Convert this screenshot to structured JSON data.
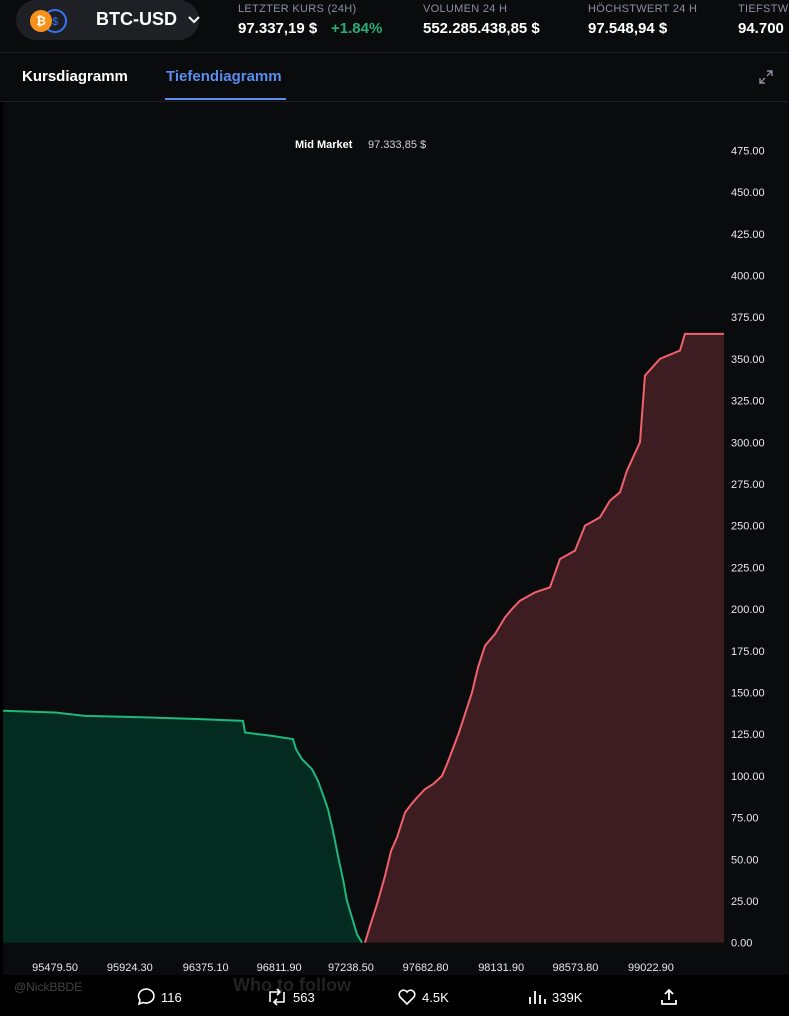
{
  "ui": {
    "symbol": "BTC-USD",
    "stats": [
      {
        "label": "LETZTER KURS (24H)",
        "value": "97.337,19 $",
        "change": "+1.84%"
      },
      {
        "label": "VOLUMEN 24 H",
        "value": "552.285.438,85 $"
      },
      {
        "label": "HÖCHSTWERT 24 H",
        "value": "97.548,94 $"
      },
      {
        "label": "TIEFSTW",
        "value": "94.700"
      }
    ],
    "tabs": [
      "Kursdiagramm",
      "Tiefendiagramm"
    ],
    "footer": {
      "handle": "@NickBBDE",
      "overlay": "Who to follow",
      "replies": "116",
      "reposts": "563",
      "likes": "4.5K",
      "views": "339K"
    }
  },
  "chart_data": {
    "type": "depth",
    "annotation": {
      "label": "Mid Market",
      "value": "97.333,85 $"
    },
    "xlim": [
      95170,
      99457
    ],
    "ylim": [
      -5,
      504
    ],
    "xticks": [
      {
        "value": 95479.5,
        "label": "95479.50"
      },
      {
        "value": 95924.3,
        "label": "95924.30"
      },
      {
        "value": 96375.1,
        "label": "96375.10"
      },
      {
        "value": 96811.9,
        "label": "96811.90"
      },
      {
        "value": 97238.5,
        "label": "97238.50"
      },
      {
        "value": 97682.8,
        "label": "97682.80"
      },
      {
        "value": 98131.9,
        "label": "98131.90"
      },
      {
        "value": 98573.8,
        "label": "98573.80"
      },
      {
        "value": 99022.9,
        "label": "99022.90"
      }
    ],
    "yticks": [
      {
        "value": 0,
        "label": "0.00"
      },
      {
        "value": 25,
        "label": "25.00"
      },
      {
        "value": 50,
        "label": "50.00"
      },
      {
        "value": 75,
        "label": "75.00"
      },
      {
        "value": 100,
        "label": "100.00"
      },
      {
        "value": 125,
        "label": "125.00"
      },
      {
        "value": 150,
        "label": "150.00"
      },
      {
        "value": 175,
        "label": "175.00"
      },
      {
        "value": 200,
        "label": "200.00"
      },
      {
        "value": 225,
        "label": "225.00"
      },
      {
        "value": 250,
        "label": "250.00"
      },
      {
        "value": 275,
        "label": "275.00"
      },
      {
        "value": 300,
        "label": "300.00"
      },
      {
        "value": 325,
        "label": "325.00"
      },
      {
        "value": 350,
        "label": "350.00"
      },
      {
        "value": 375,
        "label": "375.00"
      },
      {
        "value": 400,
        "label": "400.00"
      },
      {
        "value": 425,
        "label": "425.00"
      },
      {
        "value": 450,
        "label": "450.00"
      },
      {
        "value": 475,
        "label": "475.00"
      }
    ],
    "series": [
      {
        "color": "#1fb77e",
        "fill": "#042b20",
        "x": [
          95170.4,
          95479.5,
          95657.9,
          96044.3,
          96341.5,
          96597.2,
          96609.0,
          96769.6,
          96894.4,
          96912.2,
          96947.9,
          97007.4,
          97043.0,
          97078.7,
          97102.5,
          97132.2,
          97161.9,
          97191.7,
          97215.4,
          97245.2,
          97274.8,
          97304.6
        ],
        "values": [
          139,
          138,
          136,
          135,
          134,
          133,
          126,
          124,
          122,
          116,
          110,
          104,
          97,
          87,
          80,
          67,
          52,
          38,
          25,
          15,
          5,
          0
        ]
      },
      {
        "color": "#f0616d",
        "fill": "#3d1d22",
        "x": [
          97322.5,
          97352.2,
          97399.8,
          97441.4,
          97477.2,
          97512.7,
          97560.3,
          97590.0,
          97631.6,
          97679.2,
          97726.7,
          97780.2,
          97810.0,
          97881.3,
          97958.6,
          97994.2,
          98035.9,
          98095.3,
          98154.8,
          98196.4,
          98243.9,
          98333.1,
          98422.3,
          98481.7,
          98570.9,
          98630.4,
          98719.5,
          98779.0,
          98838.4,
          98880.1,
          98957.4,
          98987.1,
          99076.3,
          99195.3,
          99225.0,
          99456.7
        ],
        "values": [
          0,
          10,
          25,
          40,
          55,
          63,
          78,
          82,
          87,
          92,
          95,
          100,
          107,
          126,
          150,
          165,
          178,
          185,
          195,
          200,
          205,
          210,
          213,
          230,
          235,
          250,
          255,
          265,
          270,
          283,
          300,
          340,
          350,
          355,
          365,
          365
        ]
      }
    ]
  }
}
